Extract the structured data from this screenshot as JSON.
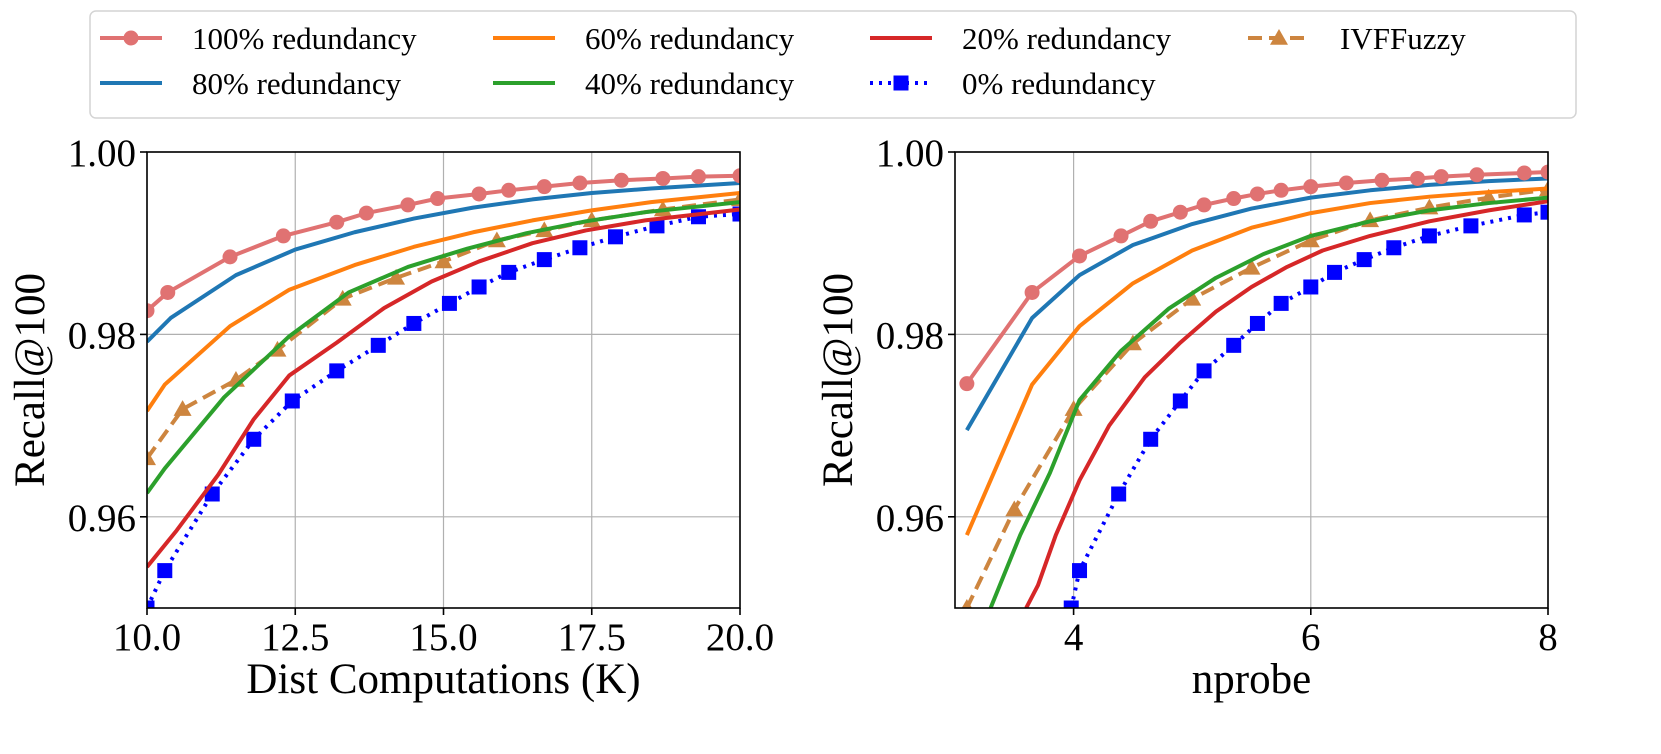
{
  "figure": {
    "legend": [
      {
        "key": "r100",
        "label": "100% redundancy"
      },
      {
        "key": "r60",
        "label": "60% redundancy"
      },
      {
        "key": "r20",
        "label": "20% redundancy"
      },
      {
        "key": "ivf",
        "label": "IVFFuzzy"
      },
      {
        "key": "r80",
        "label": "80% redundancy"
      },
      {
        "key": "r40",
        "label": "40% redundancy"
      },
      {
        "key": "r0",
        "label": "0% redundancy"
      }
    ]
  },
  "series_styles": {
    "r100": {
      "color": "#e07272",
      "dash": "",
      "marker": "circle"
    },
    "r80": {
      "color": "#1f77b4",
      "dash": "",
      "marker": "none"
    },
    "r60": {
      "color": "#ff7f0e",
      "dash": "",
      "marker": "none"
    },
    "r40": {
      "color": "#2ca02c",
      "dash": "",
      "marker": "none"
    },
    "r20": {
      "color": "#d62728",
      "dash": "",
      "marker": "none"
    },
    "r0": {
      "color": "#0000ff",
      "dash": "dot",
      "marker": "square"
    },
    "ivf": {
      "color": "#cd853f",
      "dash": "dash",
      "marker": "triangle"
    }
  },
  "chart_data": [
    {
      "type": "line",
      "title": "",
      "xlabel": "Dist Computations (K)",
      "ylabel": "Recall@100",
      "xlim": [
        10.0,
        20.0
      ],
      "ylim": [
        0.95,
        1.0
      ],
      "xticks": [
        10.0,
        12.5,
        15.0,
        17.5,
        20.0
      ],
      "xtick_labels": [
        "10.0",
        "12.5",
        "15.0",
        "17.5",
        "20.0"
      ],
      "yticks": [
        0.96,
        0.98,
        1.0
      ],
      "ytick_labels": [
        "0.96",
        "0.98",
        "1.00"
      ],
      "grid": true,
      "series": [
        {
          "key": "r100",
          "name": "100% redundancy",
          "x": [
            10.0,
            10.35,
            11.4,
            12.3,
            13.2,
            13.7,
            14.4,
            14.9,
            15.6,
            16.1,
            16.7,
            17.3,
            18.0,
            18.7,
            19.3,
            20.0
          ],
          "y": [
            0.9826,
            0.9846,
            0.9885,
            0.9908,
            0.9923,
            0.9933,
            0.9942,
            0.9949,
            0.9954,
            0.9958,
            0.9962,
            0.9966,
            0.9969,
            0.9971,
            0.9973,
            0.9974
          ]
        },
        {
          "key": "r80",
          "name": "80% redundancy",
          "x": [
            10.0,
            10.4,
            11.5,
            12.5,
            13.5,
            14.5,
            15.5,
            16.5,
            17.5,
            18.5,
            20.0
          ],
          "y": [
            0.9792,
            0.9818,
            0.9865,
            0.9893,
            0.9912,
            0.9927,
            0.9939,
            0.9948,
            0.9955,
            0.996,
            0.9966
          ]
        },
        {
          "key": "r60",
          "name": "60% redundancy",
          "x": [
            10.0,
            10.3,
            11.4,
            12.4,
            13.5,
            14.5,
            15.5,
            16.5,
            17.5,
            18.5,
            20.0
          ],
          "y": [
            0.9716,
            0.9745,
            0.9809,
            0.9849,
            0.9876,
            0.9896,
            0.9912,
            0.9925,
            0.9936,
            0.9945,
            0.9955
          ]
        },
        {
          "key": "r40",
          "name": "40% redundancy",
          "x": [
            10.0,
            10.3,
            11.3,
            12.4,
            13.4,
            14.4,
            15.4,
            16.4,
            17.4,
            18.4,
            20.0
          ],
          "y": [
            0.9626,
            0.9653,
            0.9731,
            0.9798,
            0.9846,
            0.9874,
            0.9894,
            0.9911,
            0.9924,
            0.9934,
            0.9945
          ]
        },
        {
          "key": "r20",
          "name": "20% redundancy",
          "x": [
            10.0,
            10.5,
            11.2,
            11.8,
            12.4,
            13.2,
            14.0,
            14.8,
            15.6,
            16.5,
            17.4,
            18.4,
            20.0
          ],
          "y": [
            0.9545,
            0.9585,
            0.9646,
            0.9707,
            0.9755,
            0.9791,
            0.9829,
            0.9858,
            0.988,
            0.99,
            0.9914,
            0.9925,
            0.9937
          ]
        },
        {
          "key": "r0",
          "name": "0% redundancy",
          "x": [
            10.0,
            10.3,
            11.1,
            11.8,
            12.45,
            13.2,
            13.9,
            14.5,
            15.1,
            15.6,
            16.1,
            16.7,
            17.3,
            17.9,
            18.6,
            19.3,
            20.0
          ],
          "y": [
            0.95,
            0.9541,
            0.9625,
            0.9685,
            0.9727,
            0.976,
            0.9788,
            0.9812,
            0.9834,
            0.9852,
            0.9868,
            0.9882,
            0.9895,
            0.9907,
            0.9919,
            0.9929,
            0.9932
          ]
        },
        {
          "key": "ivf",
          "name": "IVFFuzzy",
          "x": [
            10.0,
            10.6,
            11.5,
            12.2,
            13.3,
            14.2,
            15.0,
            15.9,
            16.7,
            17.5,
            18.7,
            20.0
          ],
          "y": [
            0.9664,
            0.9718,
            0.975,
            0.9783,
            0.9839,
            0.9862,
            0.988,
            0.9903,
            0.9914,
            0.9925,
            0.9937,
            0.9948
          ]
        }
      ]
    },
    {
      "type": "line",
      "title": "",
      "xlabel": "nprobe",
      "ylabel": "Recall@100",
      "xlim": [
        3.0,
        8.0
      ],
      "ylim": [
        0.95,
        1.0
      ],
      "xticks": [
        4,
        6,
        8
      ],
      "xtick_labels": [
        "4",
        "6",
        "8"
      ],
      "yticks": [
        0.96,
        0.98,
        1.0
      ],
      "ytick_labels": [
        "0.96",
        "0.98",
        "1.00"
      ],
      "grid": true,
      "series": [
        {
          "key": "r100",
          "name": "100% redundancy",
          "x": [
            3.1,
            3.65,
            4.05,
            4.4,
            4.65,
            4.9,
            5.1,
            5.35,
            5.55,
            5.75,
            6.0,
            6.3,
            6.6,
            6.9,
            7.1,
            7.4,
            7.8,
            8.0
          ],
          "y": [
            0.9746,
            0.9846,
            0.9886,
            0.9908,
            0.9924,
            0.9934,
            0.9942,
            0.9949,
            0.9954,
            0.9958,
            0.9962,
            0.9966,
            0.9969,
            0.9971,
            0.9973,
            0.9975,
            0.9977,
            0.9978
          ]
        },
        {
          "key": "r80",
          "name": "80% redundancy",
          "x": [
            3.1,
            3.65,
            4.05,
            4.5,
            5.0,
            5.5,
            6.0,
            6.5,
            7.0,
            7.5,
            8.0
          ],
          "y": [
            0.9695,
            0.9818,
            0.9865,
            0.9898,
            0.9921,
            0.9938,
            0.995,
            0.9958,
            0.9964,
            0.9968,
            0.9971
          ]
        },
        {
          "key": "r60",
          "name": "60% redundancy",
          "x": [
            3.1,
            3.65,
            4.05,
            4.5,
            5.0,
            5.5,
            6.0,
            6.5,
            7.0,
            7.5,
            8.0
          ],
          "y": [
            0.958,
            0.9745,
            0.9809,
            0.9856,
            0.9892,
            0.9917,
            0.9933,
            0.9944,
            0.9951,
            0.9956,
            0.996
          ]
        },
        {
          "key": "r40",
          "name": "40% redundancy",
          "x": [
            3.3,
            3.55,
            3.8,
            4.05,
            4.4,
            4.8,
            5.2,
            5.6,
            6.0,
            6.5,
            7.0,
            7.5,
            8.0
          ],
          "y": [
            0.95,
            0.958,
            0.9648,
            0.9728,
            0.9782,
            0.9828,
            0.9862,
            0.9888,
            0.9908,
            0.9924,
            0.9936,
            0.9944,
            0.995
          ]
        },
        {
          "key": "r20",
          "name": "20% redundancy",
          "x": [
            3.6,
            3.7,
            3.85,
            4.05,
            4.3,
            4.6,
            4.9,
            5.2,
            5.5,
            5.8,
            6.1,
            6.5,
            7.0,
            7.5,
            8.0
          ],
          "y": [
            0.95,
            0.9525,
            0.958,
            0.964,
            0.97,
            0.9753,
            0.9791,
            0.9825,
            0.9852,
            0.9874,
            0.9892,
            0.9908,
            0.9924,
            0.9936,
            0.9946
          ]
        },
        {
          "key": "r0",
          "name": "0% redundancy",
          "x": [
            3.98,
            4.05,
            4.38,
            4.65,
            4.9,
            5.1,
            5.35,
            5.55,
            5.75,
            6.0,
            6.2,
            6.45,
            6.7,
            7.0,
            7.35,
            7.8,
            8.0
          ],
          "y": [
            0.95,
            0.9541,
            0.9625,
            0.9685,
            0.9727,
            0.976,
            0.9788,
            0.9812,
            0.9834,
            0.9852,
            0.9868,
            0.9882,
            0.9895,
            0.9908,
            0.9919,
            0.9931,
            0.9934
          ]
        },
        {
          "key": "ivf",
          "name": "IVFFuzzy",
          "x": [
            3.1,
            3.5,
            4.0,
            4.5,
            5.0,
            5.5,
            6.0,
            6.5,
            7.0,
            7.5,
            8.0
          ],
          "y": [
            0.95,
            0.9608,
            0.9718,
            0.979,
            0.9839,
            0.9873,
            0.9903,
            0.9925,
            0.9939,
            0.995,
            0.9959
          ]
        }
      ]
    }
  ]
}
